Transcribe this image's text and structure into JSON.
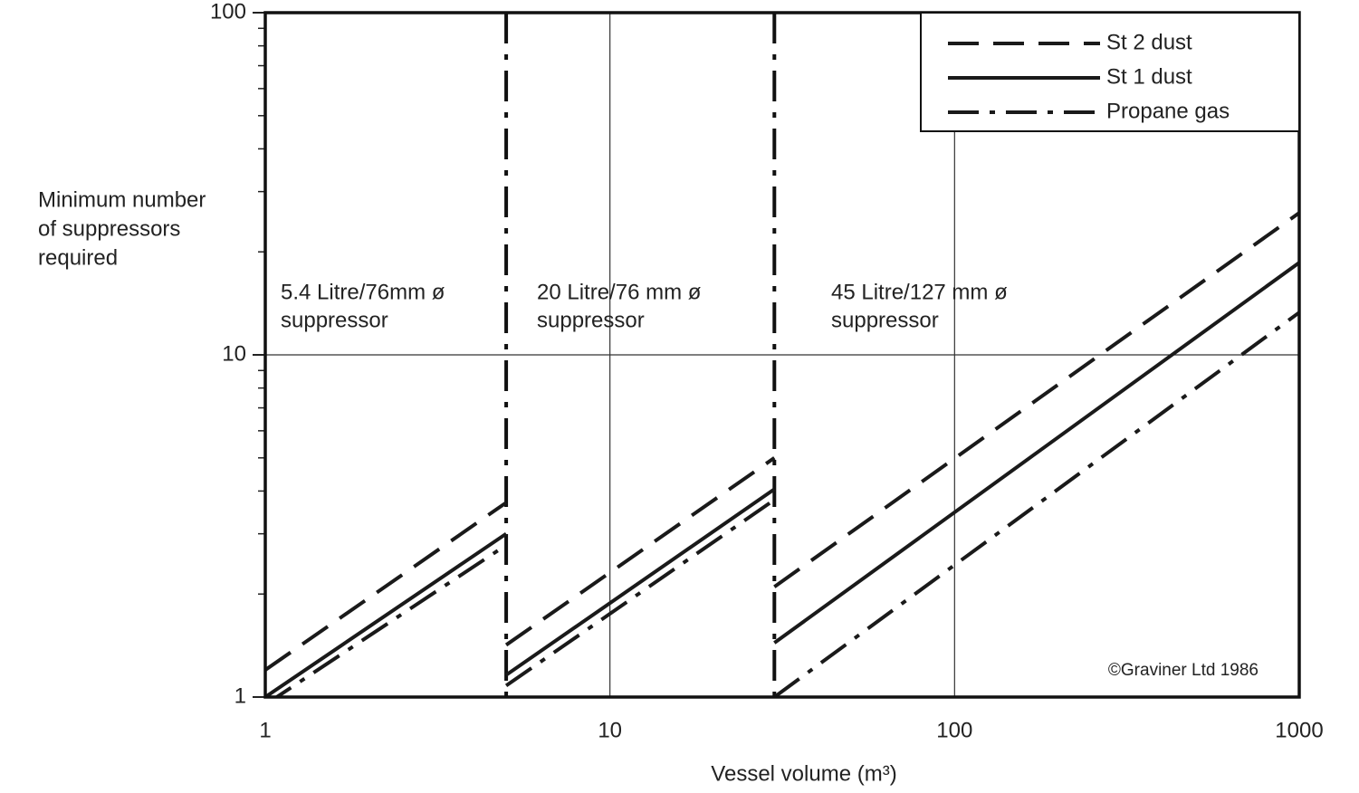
{
  "chart_data": {
    "type": "line",
    "x_label": "Vessel volume (m³)",
    "y_label": [
      "Minimum number",
      "of suppressors",
      "required"
    ],
    "x_scale": "log",
    "y_scale": "log",
    "xlim": [
      1,
      1000
    ],
    "ylim": [
      1,
      100
    ],
    "xticks": [
      1,
      10,
      100,
      1000
    ],
    "yticks": [
      1,
      10,
      100
    ],
    "grid": true,
    "legend_position": "upper right",
    "x": [
      1,
      5,
      5,
      5,
      30,
      30,
      30,
      1000
    ],
    "series": [
      {
        "name": "St 2 dust",
        "color": "#1a1a1a",
        "style": "dashed",
        "values": [
          1.2,
          3.7,
          null,
          1.42,
          5.0,
          null,
          2.1,
          26
        ]
      },
      {
        "name": "St 1 dust",
        "color": "#1a1a1a",
        "style": "solid",
        "values": [
          1.0,
          3.0,
          null,
          1.16,
          4.05,
          null,
          1.44,
          18.6
        ]
      },
      {
        "name": "Propane gas",
        "color": "#1a1a1a",
        "style": "dashdot",
        "values": [
          0.95,
          2.78,
          null,
          1.08,
          3.77,
          null,
          1.0,
          13.3
        ]
      }
    ],
    "dividers": [
      5,
      30
    ],
    "annotations": [
      [
        "5.4 Litre/76mm ø",
        "suppressor"
      ],
      [
        "20 Litre/76 mm ø",
        "suppressor"
      ],
      [
        "45 Litre/127 mm ø",
        "suppressor"
      ]
    ],
    "credit": "©Graviner Ltd 1986"
  }
}
